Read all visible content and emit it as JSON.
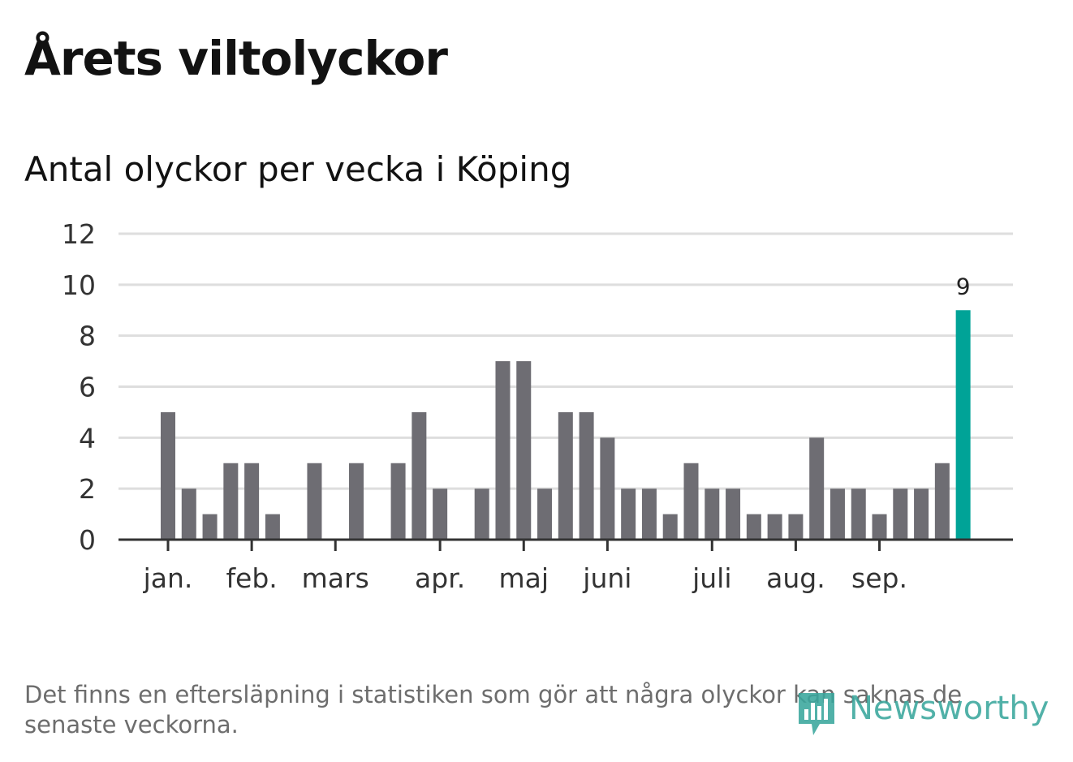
{
  "title": "Årets viltolyckor",
  "subtitle": "Antal olyckor per vecka i Köping",
  "footnote": "Det finns en eftersläpning i statistiken som gör att några olyckor kan saknas de senaste veckorna.",
  "brand": {
    "name": "Newsworthy",
    "color": "#3aa79d",
    "icon": "bar-chart-speech-bubble-icon"
  },
  "colors": {
    "bar": "#6e6d73",
    "highlight": "#00a397",
    "grid": "#dedede",
    "axis": "#333333"
  },
  "chart_data": {
    "type": "bar",
    "title": "Antal olyckor per vecka i Köping",
    "xlabel": "",
    "ylabel": "",
    "ylim": [
      0,
      12
    ],
    "yticks": [
      0,
      2,
      4,
      6,
      8,
      10,
      12
    ],
    "grid": true,
    "values": [
      5,
      2,
      1,
      3,
      3,
      1,
      0,
      3,
      0,
      3,
      0,
      3,
      5,
      2,
      0,
      2,
      7,
      7,
      2,
      5,
      5,
      4,
      2,
      2,
      1,
      3,
      2,
      2,
      1,
      1,
      1,
      4,
      2,
      2,
      1,
      2,
      2,
      3,
      9
    ],
    "highlight_index": 38,
    "data_labels": [
      {
        "index": 38,
        "text": "9"
      }
    ],
    "month_ticks": [
      {
        "label": "jan.",
        "position": 0
      },
      {
        "label": "feb.",
        "position": 4
      },
      {
        "label": "mars",
        "position": 8
      },
      {
        "label": "apr.",
        "position": 13
      },
      {
        "label": "maj",
        "position": 17
      },
      {
        "label": "juni",
        "position": 21
      },
      {
        "label": "juli",
        "position": 26
      },
      {
        "label": "aug.",
        "position": 30
      },
      {
        "label": "sep.",
        "position": 34
      }
    ]
  }
}
